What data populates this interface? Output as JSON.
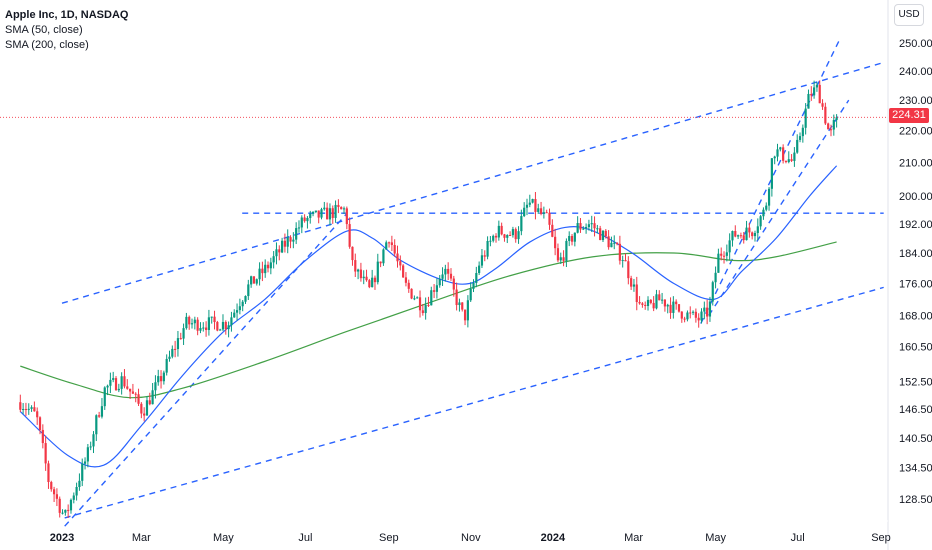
{
  "legend": {
    "title": "Apple Inc, 1D, NASDAQ",
    "sma50": "SMA (50, close)",
    "sma200": "SMA (200, close)"
  },
  "currency": "USD",
  "last_price": "224.31",
  "colors": {
    "up": "#089981",
    "down": "#f23645",
    "sma50": "#2962ff",
    "sma200": "#43a047",
    "trendline": "#2962ff",
    "price_line": "#f23645"
  },
  "chart_data": {
    "type": "candlestick",
    "symbol": "Apple Inc",
    "interval": "1D",
    "exchange": "NASDAQ",
    "y_scale": "log",
    "ylim": [
      121,
      258
    ],
    "x_ticks": [
      "2023",
      "Mar",
      "May",
      "Jul",
      "Sep",
      "Nov",
      "2024",
      "Mar",
      "May",
      "Jul",
      "Sep"
    ],
    "y_ticks": [
      "250.00",
      "240.00",
      "230.00",
      "220.00",
      "210.00",
      "200.00",
      "192.00",
      "184.00",
      "176.00",
      "168.00",
      "160.50",
      "152.50",
      "146.50",
      "140.50",
      "134.50",
      "128.50"
    ],
    "last_price": 224.31,
    "price_path": [
      [
        "2022-12-01",
        148
      ],
      [
        "2022-12-13",
        145
      ],
      [
        "2022-12-22",
        132
      ],
      [
        "2023-01-03",
        125
      ],
      [
        "2023-01-20",
        137
      ],
      [
        "2023-02-02",
        151
      ],
      [
        "2023-02-15",
        153
      ],
      [
        "2023-03-02",
        146
      ],
      [
        "2023-03-15",
        153
      ],
      [
        "2023-04-03",
        166
      ],
      [
        "2023-04-20",
        166
      ],
      [
        "2023-05-04",
        166
      ],
      [
        "2023-05-19",
        175
      ],
      [
        "2023-06-02",
        180
      ],
      [
        "2023-06-15",
        186
      ],
      [
        "2023-06-30",
        193
      ],
      [
        "2023-07-18",
        195
      ],
      [
        "2023-07-31",
        196
      ],
      [
        "2023-08-04",
        181
      ],
      [
        "2023-08-18",
        174
      ],
      [
        "2023-09-01",
        189
      ],
      [
        "2023-09-12",
        176
      ],
      [
        "2023-09-27",
        170
      ],
      [
        "2023-10-12",
        180
      ],
      [
        "2023-10-27",
        167
      ],
      [
        "2023-11-07",
        181
      ],
      [
        "2023-11-20",
        190
      ],
      [
        "2023-12-04",
        189
      ],
      [
        "2023-12-14",
        198
      ],
      [
        "2023-12-28",
        193
      ],
      [
        "2024-01-05",
        181
      ],
      [
        "2024-01-19",
        191
      ],
      [
        "2024-01-29",
        192
      ],
      [
        "2024-02-09",
        188
      ],
      [
        "2024-02-22",
        183
      ],
      [
        "2024-03-07",
        169
      ],
      [
        "2024-03-21",
        172
      ],
      [
        "2024-04-04",
        169
      ],
      [
        "2024-04-18",
        167
      ],
      [
        "2024-04-26",
        169
      ],
      [
        "2024-05-03",
        183
      ],
      [
        "2024-05-15",
        189
      ],
      [
        "2024-05-28",
        190
      ],
      [
        "2024-06-07",
        196
      ],
      [
        "2024-06-13",
        214
      ],
      [
        "2024-06-28",
        210
      ],
      [
        "2024-07-10",
        232
      ],
      [
        "2024-07-16",
        234
      ],
      [
        "2024-07-25",
        218
      ],
      [
        "2024-07-30",
        224.31
      ]
    ],
    "sma50": [
      [
        "2022-12-01",
        146
      ],
      [
        "2023-01-05",
        137
      ],
      [
        "2023-02-01",
        135
      ],
      [
        "2023-03-01",
        143
      ],
      [
        "2023-04-01",
        154
      ],
      [
        "2023-05-01",
        164
      ],
      [
        "2023-06-01",
        172
      ],
      [
        "2023-07-01",
        182
      ],
      [
        "2023-08-01",
        190
      ],
      [
        "2023-08-20",
        188
      ],
      [
        "2023-09-10",
        182
      ],
      [
        "2023-10-10",
        177
      ],
      [
        "2023-10-31",
        176
      ],
      [
        "2023-11-20",
        180
      ],
      [
        "2023-12-15",
        187
      ],
      [
        "2024-01-10",
        191
      ],
      [
        "2024-01-31",
        190
      ],
      [
        "2024-02-29",
        184
      ],
      [
        "2024-03-31",
        176
      ],
      [
        "2024-04-30",
        172
      ],
      [
        "2024-05-20",
        179
      ],
      [
        "2024-06-15",
        188
      ],
      [
        "2024-07-10",
        200
      ],
      [
        "2024-07-30",
        209
      ]
    ],
    "sma200": [
      [
        "2022-12-01",
        156
      ],
      [
        "2023-01-10",
        152
      ],
      [
        "2023-02-20",
        149
      ],
      [
        "2023-03-31",
        151
      ],
      [
        "2023-05-31",
        157
      ],
      [
        "2023-07-31",
        164
      ],
      [
        "2023-09-30",
        171
      ],
      [
        "2023-11-30",
        178
      ],
      [
        "2024-01-31",
        183
      ],
      [
        "2024-03-31",
        184
      ],
      [
        "2024-05-15",
        182
      ],
      [
        "2024-06-15",
        183
      ],
      [
        "2024-07-30",
        187
      ]
    ],
    "trendlines": [
      {
        "from": [
          "2023-01-01",
          171
        ],
        "to": [
          "2024-09-03",
          243
        ]
      },
      {
        "from": [
          "2023-01-03",
          125
        ],
        "to": [
          "2024-09-03",
          175
        ]
      },
      {
        "from": [
          "2023-01-03",
          123.5
        ],
        "to": [
          "2023-08-01",
          195
        ]
      },
      {
        "from": [
          "2024-04-20",
          166
        ],
        "to": [
          "2024-08-01",
          251
        ]
      },
      {
        "from": [
          "2024-04-26",
          168
        ],
        "to": [
          "2024-08-08",
          230
        ]
      },
      {
        "from": [
          "2023-05-15",
          195
        ],
        "to": [
          "2024-09-03",
          195
        ]
      }
    ]
  }
}
